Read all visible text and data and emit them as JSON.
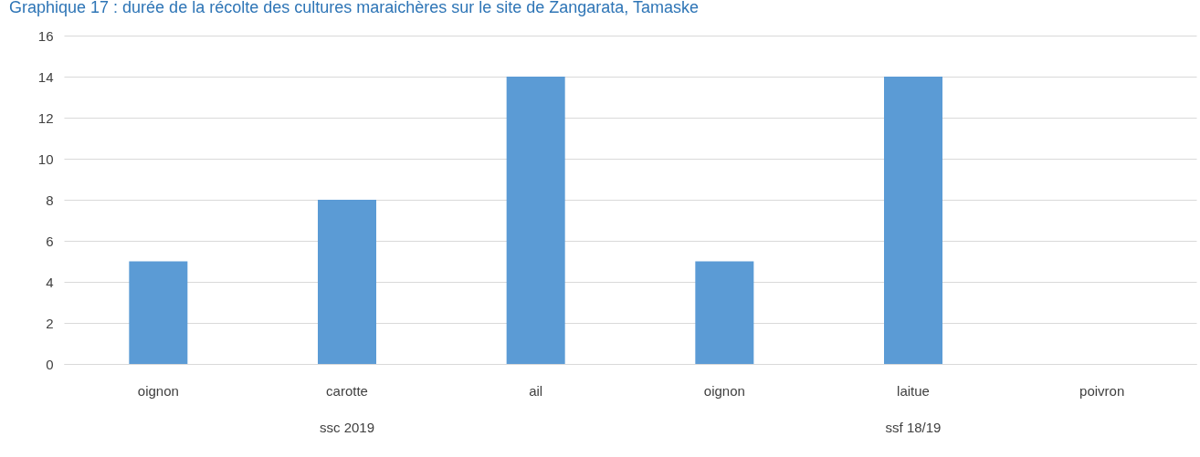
{
  "chart_data": {
    "type": "bar",
    "title": "Graphique 17 : durée de la récolte des cultures maraichères sur le site de Zangarata, Tamaske",
    "categories": [
      "oignon",
      "carotte",
      "ail",
      "oignon",
      "laitue",
      "poivron"
    ],
    "values": [
      5,
      8,
      14,
      5,
      14,
      0
    ],
    "color": "#5b9bd5",
    "ylim": [
      0,
      16
    ],
    "yticks": [
      0,
      2,
      4,
      6,
      8,
      10,
      12,
      14,
      16
    ],
    "grid": "y",
    "annotations": [
      "ssc 2019",
      "ssf 18/19"
    ]
  }
}
